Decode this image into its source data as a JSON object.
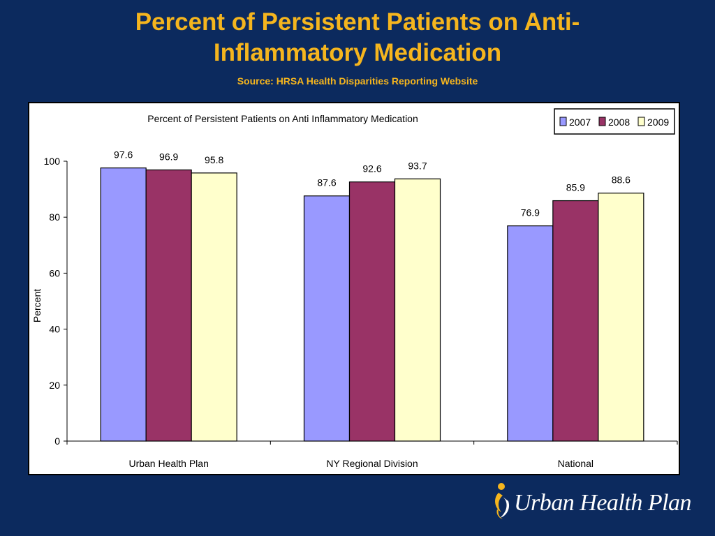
{
  "slide": {
    "title_line1": "Percent of Persistent Patients on Anti-",
    "title_line2": "Inflammatory Medication",
    "subtitle": "Source: HRSA Health Disparities Reporting Website",
    "background_color": "#0c2a5e",
    "title_color": "#f5b51e"
  },
  "logo": {
    "text": "Urban Health Plan",
    "icon": "person-swirl-logo-icon"
  },
  "chart_data": {
    "type": "bar",
    "title": "Percent of Persistent Patients on Anti Inflammatory Medication",
    "ylabel": "Percent",
    "xlabel": "",
    "ylim": [
      0,
      100
    ],
    "yticks": [
      0,
      20,
      40,
      60,
      80,
      100
    ],
    "categories": [
      "Urban Health Plan",
      "NY Regional Division",
      "National"
    ],
    "series": [
      {
        "name": "2007",
        "color": "#9999ff",
        "values": [
          97.6,
          87.6,
          76.9
        ]
      },
      {
        "name": "2008",
        "color": "#993366",
        "values": [
          96.9,
          92.6,
          85.9
        ]
      },
      {
        "name": "2009",
        "color": "#ffffcc",
        "values": [
          95.8,
          93.7,
          88.6
        ]
      }
    ],
    "legend_position": "top-right",
    "grid": false
  }
}
